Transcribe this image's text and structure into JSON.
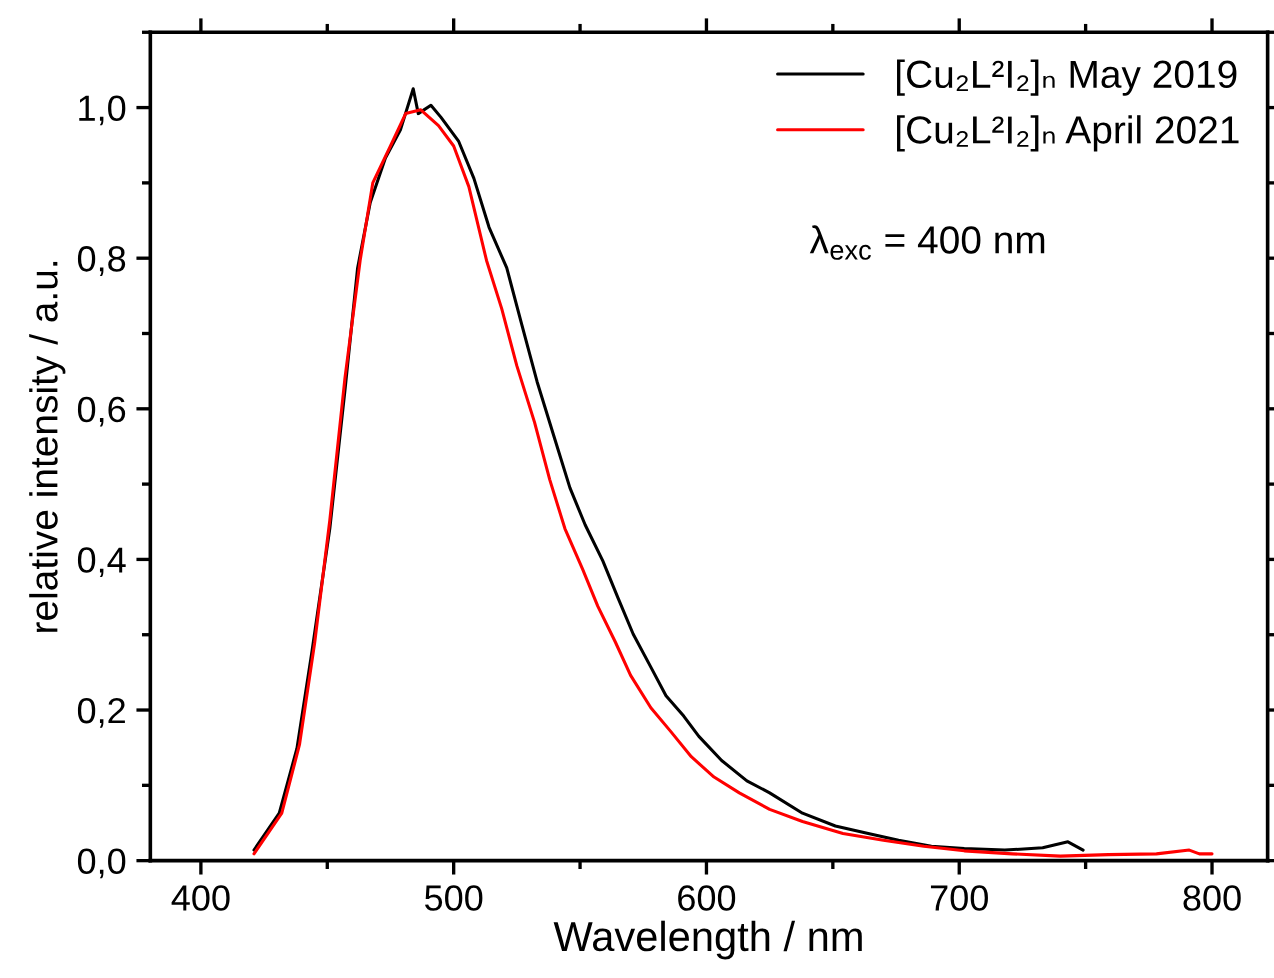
{
  "chart_data": {
    "type": "line",
    "xlabel": "Wavelength / nm",
    "ylabel": "relative intensity / a.u.",
    "xlim": [
      380,
      822
    ],
    "xticks": [
      400,
      500,
      600,
      700,
      800
    ],
    "ylim": [
      0,
      1.1
    ],
    "yticks": [
      {
        "value": 0,
        "label": "0,0"
      },
      {
        "value": 0.2,
        "label": "0,2"
      },
      {
        "value": 0.4,
        "label": "0,4"
      },
      {
        "value": 0.6,
        "label": "0,6"
      },
      {
        "value": 0.8,
        "label": "0,8"
      },
      {
        "value": 1.0,
        "label": "1,0"
      }
    ],
    "grid": false,
    "legend": "top right",
    "line_style": "solid",
    "marker": "none",
    "annotations": [
      "λ$_{exc}$ = 400 nm"
    ],
    "series": [
      {
        "name": "[Cu₂L²I₂]ₙ May 2019",
        "color": "#000000",
        "x": [
          421,
          431,
          438,
          444,
          451,
          457,
          462,
          467,
          473,
          479,
          484,
          486,
          491,
          495,
          502,
          508,
          514,
          521,
          527,
          533,
          540,
          546,
          552,
          559,
          565,
          571,
          578,
          584,
          591,
          597,
          606,
          616,
          625,
          638,
          651,
          664,
          676,
          689,
          702,
          718,
          733,
          743,
          749
        ],
        "values": [
          0.014,
          0.063,
          0.149,
          0.279,
          0.441,
          0.625,
          0.787,
          0.874,
          0.933,
          0.971,
          1.025,
          0.992,
          1.003,
          0.987,
          0.955,
          0.906,
          0.841,
          0.787,
          0.711,
          0.636,
          0.56,
          0.495,
          0.446,
          0.398,
          0.349,
          0.301,
          0.257,
          0.219,
          0.192,
          0.165,
          0.133,
          0.106,
          0.09,
          0.063,
          0.046,
          0.036,
          0.027,
          0.019,
          0.016,
          0.014,
          0.017,
          0.025,
          0.014
        ]
      },
      {
        "name": "[Cu₂L²I₂]ₙ April 2021",
        "color": "#ff0000",
        "x": [
          421,
          432,
          439,
          445,
          451,
          457,
          463,
          468,
          475,
          481,
          487,
          494,
          500,
          506,
          513,
          519,
          525,
          532,
          538,
          544,
          551,
          557,
          564,
          570,
          578,
          586,
          594,
          603,
          613,
          625,
          638,
          654,
          670,
          686,
          702,
          721,
          740,
          759,
          778,
          791,
          795,
          800
        ],
        "values": [
          0.009,
          0.063,
          0.154,
          0.289,
          0.452,
          0.641,
          0.797,
          0.9,
          0.949,
          0.992,
          0.997,
          0.976,
          0.949,
          0.895,
          0.797,
          0.733,
          0.657,
          0.582,
          0.506,
          0.441,
          0.387,
          0.338,
          0.29,
          0.246,
          0.203,
          0.171,
          0.138,
          0.111,
          0.09,
          0.068,
          0.052,
          0.036,
          0.027,
          0.019,
          0.013,
          0.009,
          0.006,
          0.008,
          0.009,
          0.014,
          0.009,
          0.009
        ]
      }
    ]
  }
}
